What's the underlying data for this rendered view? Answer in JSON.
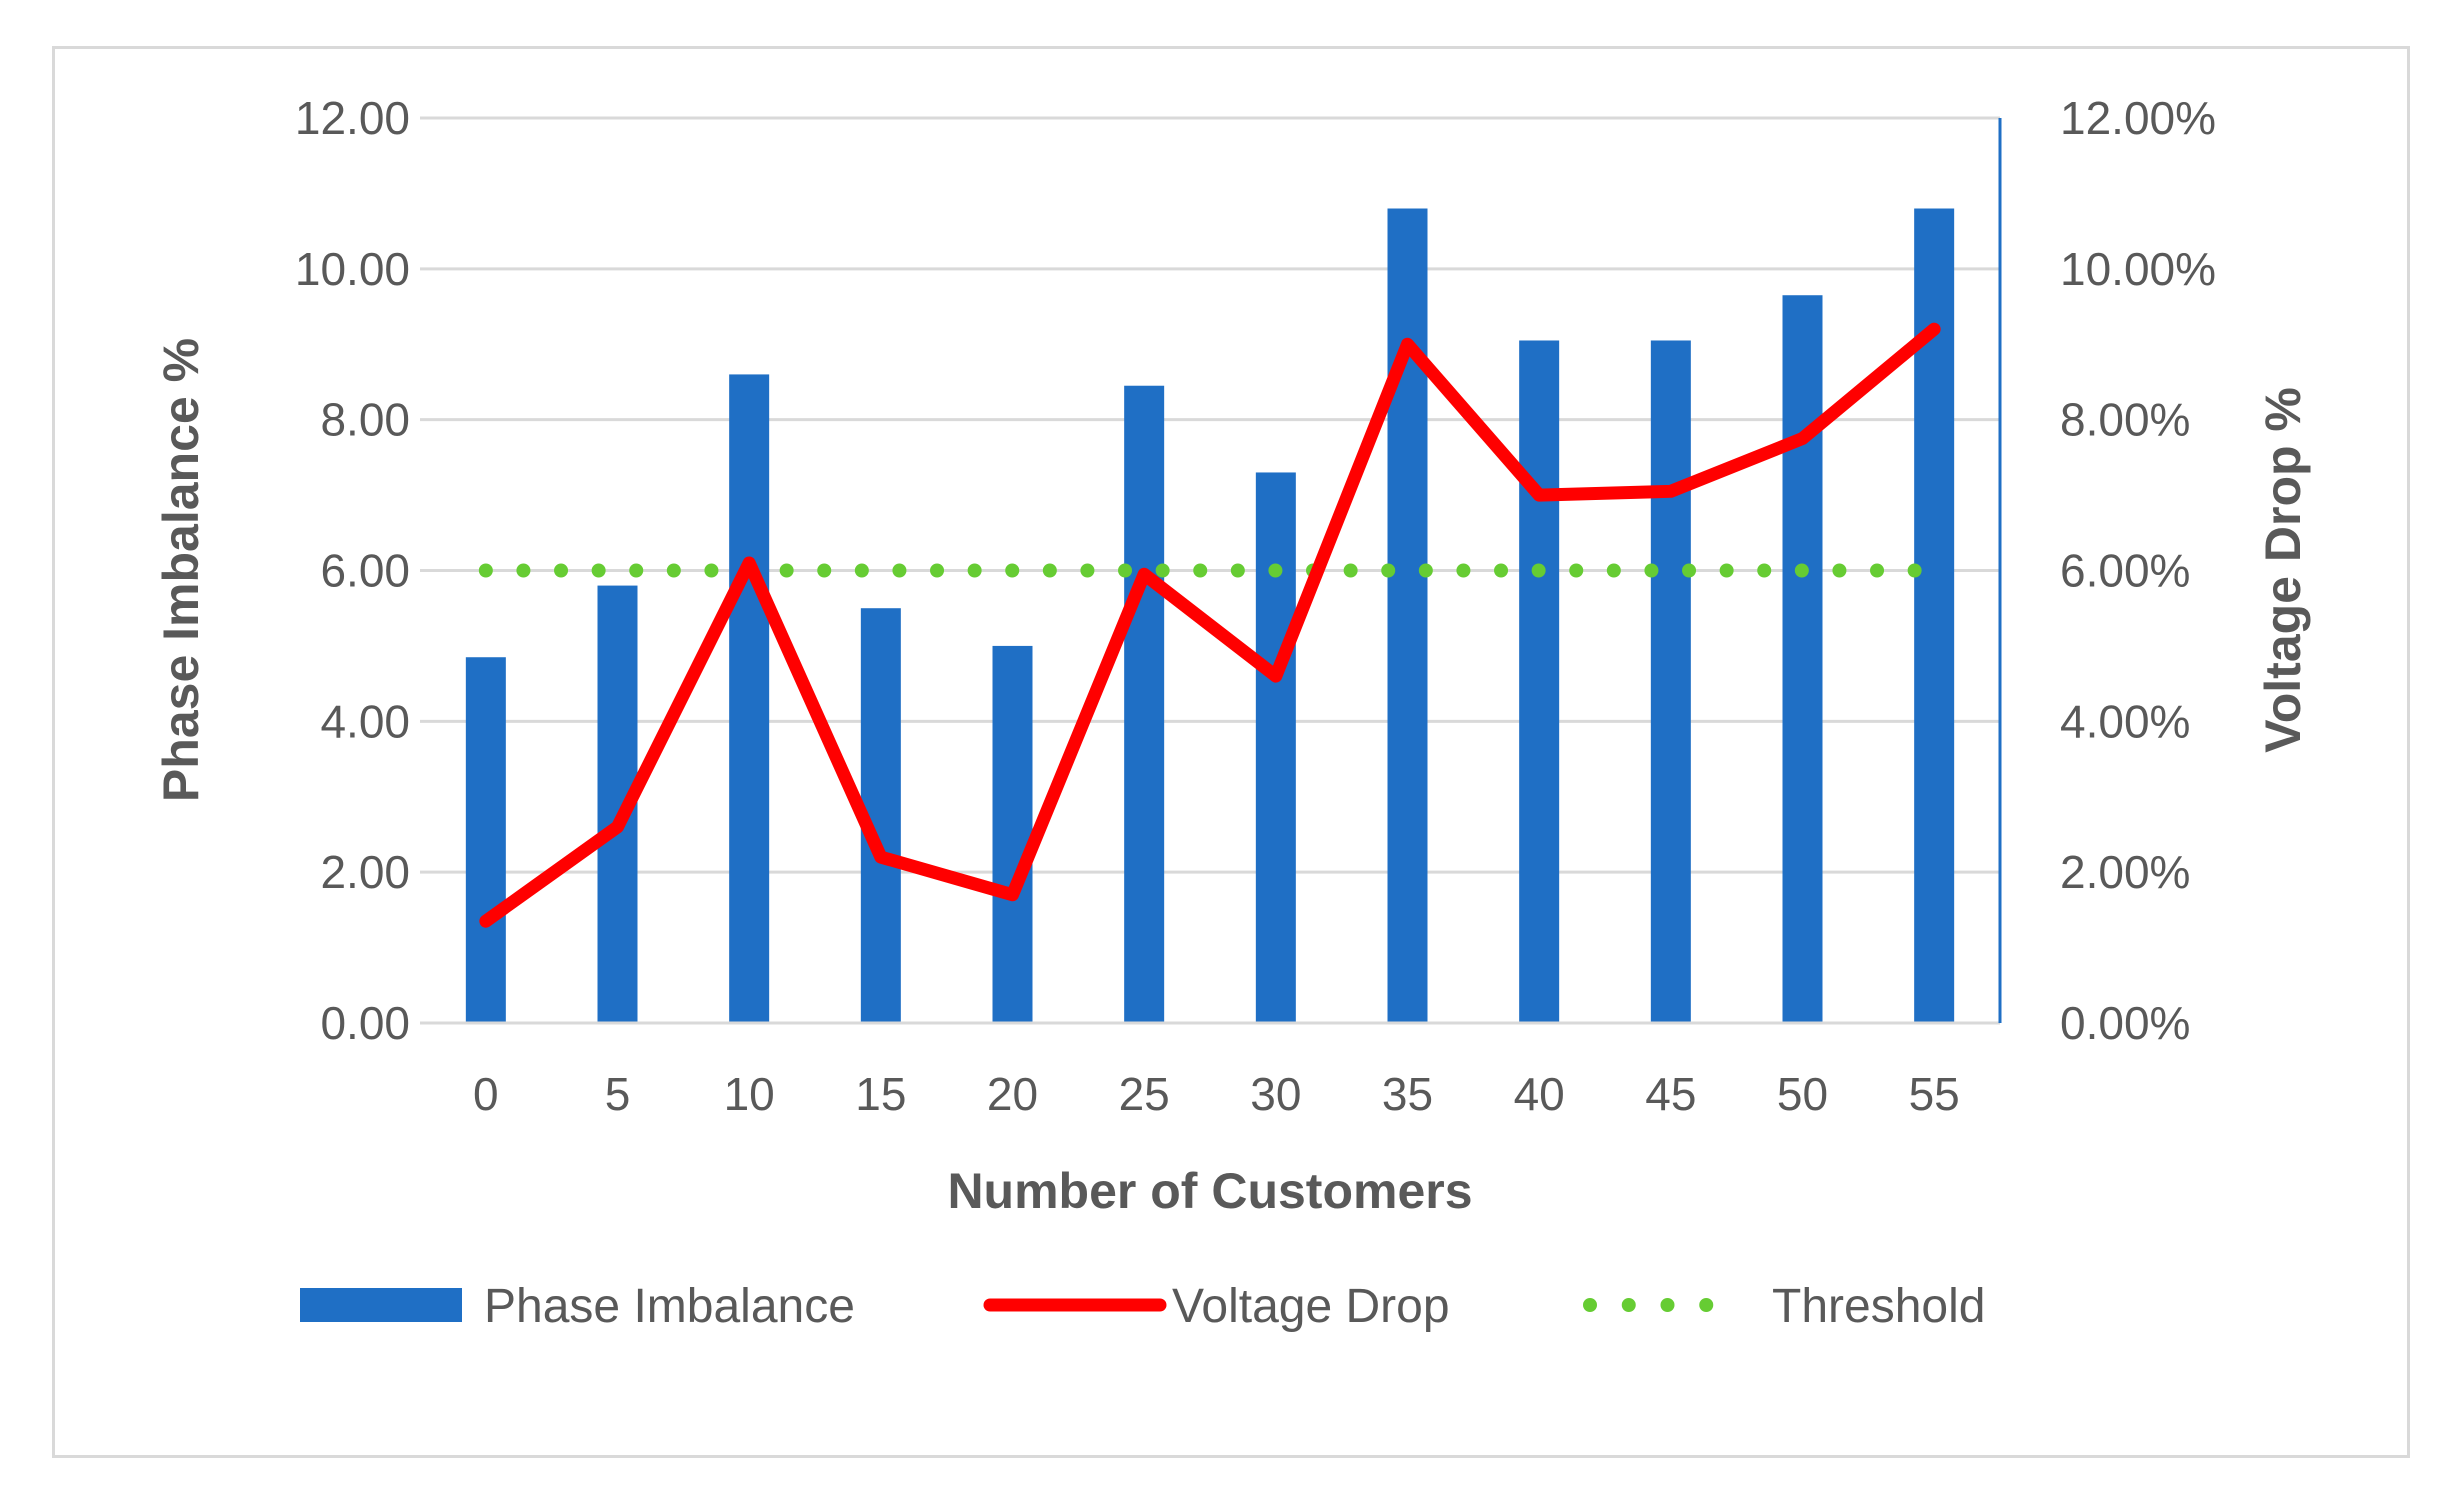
{
  "chart_data": {
    "type": "bar",
    "categories": [
      "0",
      "5",
      "10",
      "15",
      "20",
      "25",
      "30",
      "35",
      "40",
      "45",
      "50",
      "55"
    ],
    "series": [
      {
        "name": "Phase Imbalance",
        "type": "bar",
        "axis": "left",
        "color": "#1f6fc5",
        "values": [
          4.85,
          5.8,
          8.6,
          5.5,
          5.0,
          8.45,
          7.3,
          10.8,
          9.05,
          9.05,
          9.65,
          10.8
        ]
      },
      {
        "name": "Voltage Drop",
        "type": "line",
        "axis": "right",
        "color": "#ff0000",
        "values": [
          1.35,
          2.6,
          6.1,
          2.2,
          1.7,
          5.95,
          4.6,
          9.0,
          7.0,
          7.05,
          7.75,
          9.2
        ]
      },
      {
        "name": "Threshold",
        "type": "line-dotted",
        "axis": "left",
        "color": "#66cc33",
        "values": [
          6,
          6,
          6,
          6,
          6,
          6,
          6,
          6,
          6,
          6,
          6,
          6
        ]
      }
    ],
    "xlabel": "Number of Customers",
    "ylabel": "Phase Imbalance %",
    "y2label": "Voltage Drop %",
    "ylim": [
      0,
      12
    ],
    "y2lim": [
      0,
      12
    ],
    "yticks": [
      "0.00",
      "2.00",
      "4.00",
      "6.00",
      "8.00",
      "10.00",
      "12.00"
    ],
    "y2ticks": [
      "0.00%",
      "2.00%",
      "4.00%",
      "6.00%",
      "8.00%",
      "10.00%",
      "12.00%"
    ],
    "grid": true,
    "legend_position": "bottom"
  }
}
